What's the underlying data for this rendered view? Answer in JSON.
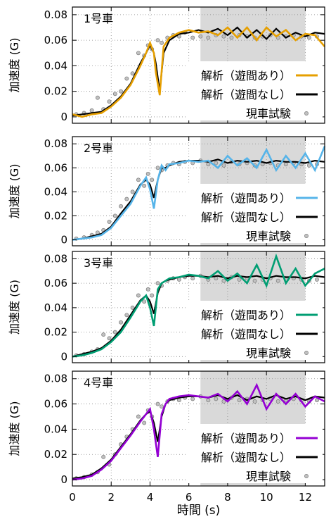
{
  "figure": {
    "xlabel": "時間 (s)",
    "ylabel": "加速度 (G)",
    "xticks": [
      "0",
      "2",
      "4",
      "6",
      "8",
      "10",
      "12"
    ],
    "yticks": [
      "0",
      "0.02",
      "0.04",
      "0.06",
      "0.08"
    ]
  },
  "chart_data": [
    {
      "type": "line",
      "panel_label": "1号車",
      "xlim": [
        0,
        13
      ],
      "ylim": [
        -0.005,
        0.086
      ],
      "grid": true,
      "legend_position": "bottom-right",
      "shaded_region": [
        6.6,
        12.0
      ],
      "colors": {
        "with_gap": "#e69f00",
        "no_gap": "#000000",
        "test": "#a0a0a0"
      },
      "series": [
        {
          "name": "解析（遊間あり）",
          "x": [
            0,
            0.5,
            1,
            1.5,
            2,
            2.5,
            3,
            3.5,
            3.8,
            4.0,
            4.2,
            4.3,
            4.5,
            4.7,
            5,
            5.5,
            6,
            6.5,
            7,
            7.5,
            8,
            8.5,
            9,
            9.5,
            10,
            10.5,
            11,
            11.5,
            12,
            12.5,
            13
          ],
          "y": [
            0.002,
            0.0,
            0.002,
            0.003,
            0.008,
            0.015,
            0.025,
            0.04,
            0.05,
            0.058,
            0.05,
            0.035,
            0.017,
            0.055,
            0.062,
            0.066,
            0.068,
            0.066,
            0.067,
            0.064,
            0.07,
            0.062,
            0.07,
            0.06,
            0.07,
            0.063,
            0.068,
            0.06,
            0.065,
            0.064,
            0.055
          ]
        },
        {
          "name": "解析（遊間なし）",
          "x": [
            0,
            0.5,
            1,
            1.5,
            2,
            2.5,
            3,
            3.5,
            3.8,
            4.0,
            4.2,
            4.3,
            4.5,
            4.7,
            5,
            5.5,
            6,
            6.5,
            7,
            7.5,
            8,
            8.5,
            9,
            9.5,
            10,
            10.5,
            11,
            11.5,
            12,
            12.5,
            13
          ],
          "y": [
            0.001,
            0.002,
            0.003,
            0.004,
            0.009,
            0.016,
            0.026,
            0.042,
            0.05,
            0.056,
            0.05,
            0.042,
            0.02,
            0.05,
            0.06,
            0.065,
            0.066,
            0.068,
            0.066,
            0.069,
            0.064,
            0.07,
            0.062,
            0.068,
            0.061,
            0.069,
            0.062,
            0.066,
            0.063,
            0.066,
            0.065
          ]
        },
        {
          "name": "現車試験",
          "x": [
            0.2,
            0.6,
            1.0,
            1.3,
            1.6,
            1.9,
            2.2,
            2.5,
            2.8,
            3.1,
            3.4,
            3.7,
            3.9,
            4.1,
            4.4,
            4.6,
            4.9,
            5.2,
            5.5,
            5.8,
            6.2,
            6.6,
            7.0,
            7.4,
            7.8,
            8.2,
            8.6,
            9.0,
            9.4,
            9.8,
            10.2,
            10.6,
            11.0,
            11.4,
            11.8,
            12.2,
            12.6
          ],
          "y": [
            0.002,
            0.003,
            0.005,
            0.015,
            0.006,
            0.012,
            0.018,
            0.02,
            0.03,
            0.034,
            0.05,
            0.048,
            0.056,
            0.053,
            0.06,
            0.058,
            0.062,
            0.064,
            0.063,
            0.066,
            0.062,
            0.063,
            0.062,
            0.064,
            0.063,
            0.062,
            0.064,
            0.063,
            0.062,
            0.063,
            0.064,
            0.062,
            0.063,
            0.064,
            0.063,
            0.062,
            0.063
          ]
        }
      ]
    },
    {
      "type": "line",
      "panel_label": "2号車",
      "xlim": [
        0,
        13
      ],
      "ylim": [
        -0.005,
        0.086
      ],
      "grid": true,
      "legend_position": "bottom-right",
      "shaded_region": [
        6.6,
        12.0
      ],
      "colors": {
        "with_gap": "#56b4e9",
        "no_gap": "#000000",
        "test": "#a0a0a0"
      },
      "series": [
        {
          "name": "解析（遊間あり）",
          "x": [
            0,
            0.5,
            1,
            1.5,
            2,
            2.5,
            3,
            3.5,
            3.8,
            4.0,
            4.2,
            4.4,
            4.6,
            4.8,
            5,
            5.5,
            6,
            6.5,
            7,
            7.5,
            8,
            8.5,
            9,
            9.5,
            10,
            10.5,
            11,
            11.5,
            12,
            12.5,
            13
          ],
          "y": [
            0.0,
            0.001,
            0.002,
            0.004,
            0.01,
            0.02,
            0.03,
            0.045,
            0.052,
            0.042,
            0.026,
            0.05,
            0.062,
            0.058,
            0.063,
            0.064,
            0.066,
            0.065,
            0.066,
            0.06,
            0.07,
            0.062,
            0.068,
            0.06,
            0.075,
            0.058,
            0.07,
            0.06,
            0.072,
            0.058,
            0.078
          ]
        },
        {
          "name": "解析（遊間なし）",
          "x": [
            0,
            0.5,
            1,
            1.5,
            2,
            2.5,
            3,
            3.5,
            3.8,
            4.0,
            4.2,
            4.4,
            4.6,
            4.8,
            5,
            5.5,
            6,
            6.5,
            7,
            7.5,
            8,
            8.5,
            9,
            9.5,
            10,
            10.5,
            11,
            11.5,
            12,
            12.5,
            13
          ],
          "y": [
            0.0,
            0.001,
            0.003,
            0.005,
            0.011,
            0.022,
            0.032,
            0.046,
            0.05,
            0.046,
            0.035,
            0.05,
            0.06,
            0.06,
            0.062,
            0.065,
            0.066,
            0.066,
            0.065,
            0.067,
            0.064,
            0.066,
            0.065,
            0.066,
            0.064,
            0.066,
            0.065,
            0.065,
            0.064,
            0.066,
            0.065
          ]
        },
        {
          "name": "現車試験",
          "x": [
            0.2,
            0.6,
            1.0,
            1.3,
            1.6,
            1.9,
            2.2,
            2.5,
            2.8,
            3.1,
            3.4,
            3.7,
            3.9,
            4.1,
            4.4,
            4.6,
            4.9,
            5.2,
            5.5,
            5.8,
            6.2,
            6.6,
            7.0,
            7.4,
            7.8,
            8.2,
            8.6,
            9.0,
            9.4,
            9.8,
            10.2,
            10.6,
            11.0,
            11.4,
            11.8,
            12.2,
            12.6
          ],
          "y": [
            0.001,
            0.002,
            0.004,
            0.006,
            0.008,
            0.015,
            0.02,
            0.028,
            0.034,
            0.04,
            0.05,
            0.045,
            0.055,
            0.05,
            0.06,
            0.058,
            0.062,
            0.064,
            0.063,
            0.065,
            0.064,
            0.066,
            0.063,
            0.064,
            0.062,
            0.065,
            0.063,
            0.064,
            0.062,
            0.063,
            0.064,
            0.062,
            0.063,
            0.064,
            0.063,
            0.062,
            0.063
          ]
        }
      ]
    },
    {
      "type": "line",
      "panel_label": "3号車",
      "xlim": [
        0,
        13
      ],
      "ylim": [
        -0.005,
        0.086
      ],
      "grid": true,
      "legend_position": "bottom-right",
      "shaded_region": [
        6.6,
        12.0
      ],
      "colors": {
        "with_gap": "#009e73",
        "no_gap": "#000000",
        "test": "#a0a0a0"
      },
      "series": [
        {
          "name": "解析（遊間あり）",
          "x": [
            0,
            0.5,
            1,
            1.5,
            2,
            2.5,
            3,
            3.5,
            3.8,
            4.0,
            4.2,
            4.4,
            4.6,
            4.8,
            5,
            5.5,
            6,
            6.5,
            7,
            7.5,
            8,
            8.5,
            9,
            9.5,
            10,
            10.5,
            11,
            11.5,
            12,
            12.5,
            13
          ],
          "y": [
            0.0,
            0.001,
            0.003,
            0.006,
            0.012,
            0.02,
            0.032,
            0.045,
            0.05,
            0.04,
            0.025,
            0.055,
            0.06,
            0.062,
            0.064,
            0.065,
            0.067,
            0.066,
            0.064,
            0.07,
            0.062,
            0.068,
            0.06,
            0.075,
            0.058,
            0.082,
            0.06,
            0.072,
            0.058,
            0.068,
            0.072
          ]
        },
        {
          "name": "解析（遊間なし）",
          "x": [
            0,
            0.5,
            1,
            1.5,
            2,
            2.5,
            3,
            3.5,
            3.8,
            4.0,
            4.2,
            4.4,
            4.6,
            4.8,
            5,
            5.5,
            6,
            6.5,
            7,
            7.5,
            8,
            8.5,
            9,
            9.5,
            10,
            10.5,
            11,
            11.5,
            12,
            12.5,
            13
          ],
          "y": [
            0.0,
            0.002,
            0.004,
            0.007,
            0.013,
            0.022,
            0.034,
            0.046,
            0.05,
            0.045,
            0.035,
            0.052,
            0.06,
            0.062,
            0.063,
            0.065,
            0.066,
            0.066,
            0.065,
            0.066,
            0.064,
            0.066,
            0.065,
            0.066,
            0.064,
            0.066,
            0.065,
            0.065,
            0.064,
            0.066,
            0.065
          ]
        },
        {
          "name": "現車試験",
          "x": [
            0.2,
            0.6,
            1.0,
            1.3,
            1.6,
            1.9,
            2.2,
            2.5,
            2.8,
            3.1,
            3.4,
            3.7,
            3.9,
            4.1,
            4.4,
            4.6,
            4.9,
            5.2,
            5.5,
            5.8,
            6.2,
            6.6,
            7.0,
            7.4,
            7.8,
            8.2,
            8.6,
            9.0,
            9.4,
            9.8,
            10.2,
            10.6,
            11.0,
            11.4,
            11.8,
            12.2,
            12.6
          ],
          "y": [
            0.001,
            0.002,
            0.004,
            0.006,
            0.018,
            0.015,
            0.02,
            0.028,
            0.034,
            0.04,
            0.05,
            0.045,
            0.055,
            0.05,
            0.06,
            0.058,
            0.062,
            0.064,
            0.063,
            0.065,
            0.064,
            0.066,
            0.063,
            0.064,
            0.062,
            0.065,
            0.063,
            0.064,
            0.062,
            0.063,
            0.064,
            0.062,
            0.063,
            0.064,
            0.063,
            0.062,
            0.063
          ]
        }
      ]
    },
    {
      "type": "line",
      "panel_label": "4号車",
      "xlim": [
        0,
        13
      ],
      "ylim": [
        -0.005,
        0.086
      ],
      "grid": true,
      "legend_position": "bottom-right",
      "shaded_region": [
        6.6,
        12.0
      ],
      "colors": {
        "with_gap": "#9400d3",
        "no_gap": "#000000",
        "test": "#a0a0a0"
      },
      "series": [
        {
          "name": "解析（遊間あり）",
          "x": [
            0,
            0.5,
            1,
            1.5,
            2,
            2.5,
            3,
            3.5,
            3.8,
            4.0,
            4.2,
            4.4,
            4.6,
            4.8,
            5,
            5.5,
            6,
            6.5,
            7,
            7.5,
            8,
            8.5,
            9,
            9.5,
            10,
            10.5,
            11,
            11.5,
            12,
            12.5,
            13
          ],
          "y": [
            0.0,
            0.001,
            0.003,
            0.008,
            0.015,
            0.025,
            0.035,
            0.046,
            0.052,
            0.056,
            0.04,
            0.018,
            0.052,
            0.06,
            0.064,
            0.066,
            0.067,
            0.066,
            0.065,
            0.068,
            0.062,
            0.07,
            0.06,
            0.075,
            0.056,
            0.068,
            0.06,
            0.068,
            0.058,
            0.066,
            0.062
          ]
        },
        {
          "name": "解析（遊間なし）",
          "x": [
            0,
            0.5,
            1,
            1.5,
            2,
            2.5,
            3,
            3.5,
            3.8,
            4.0,
            4.2,
            4.4,
            4.6,
            4.8,
            5,
            5.5,
            6,
            6.5,
            7,
            7.5,
            8,
            8.5,
            9,
            9.5,
            10,
            10.5,
            11,
            11.5,
            12,
            12.5,
            13
          ],
          "y": [
            0.001,
            0.002,
            0.004,
            0.009,
            0.016,
            0.026,
            0.036,
            0.047,
            0.052,
            0.054,
            0.045,
            0.03,
            0.05,
            0.06,
            0.063,
            0.065,
            0.066,
            0.066,
            0.065,
            0.067,
            0.064,
            0.067,
            0.063,
            0.066,
            0.064,
            0.067,
            0.064,
            0.066,
            0.063,
            0.066,
            0.065
          ]
        },
        {
          "name": "現車試験",
          "x": [
            0.2,
            0.6,
            1.0,
            1.3,
            1.6,
            1.9,
            2.2,
            2.5,
            2.8,
            3.1,
            3.4,
            3.7,
            3.9,
            4.1,
            4.4,
            4.6,
            4.9,
            5.2,
            5.5,
            5.8,
            6.2,
            6.6,
            7.0,
            7.4,
            7.8,
            8.2,
            8.6,
            9.0,
            9.4,
            9.8,
            10.2,
            10.6,
            11.0,
            11.4,
            11.8,
            12.2,
            12.6
          ],
          "y": [
            0.001,
            0.002,
            0.004,
            0.006,
            0.018,
            0.012,
            0.02,
            0.028,
            0.034,
            0.04,
            0.05,
            0.045,
            0.055,
            0.05,
            0.06,
            0.058,
            0.062,
            0.064,
            0.063,
            0.065,
            0.064,
            0.066,
            0.063,
            0.064,
            0.062,
            0.065,
            0.063,
            0.064,
            0.062,
            0.063,
            0.064,
            0.062,
            0.063,
            0.064,
            0.063,
            0.062,
            0.063
          ]
        }
      ]
    }
  ]
}
